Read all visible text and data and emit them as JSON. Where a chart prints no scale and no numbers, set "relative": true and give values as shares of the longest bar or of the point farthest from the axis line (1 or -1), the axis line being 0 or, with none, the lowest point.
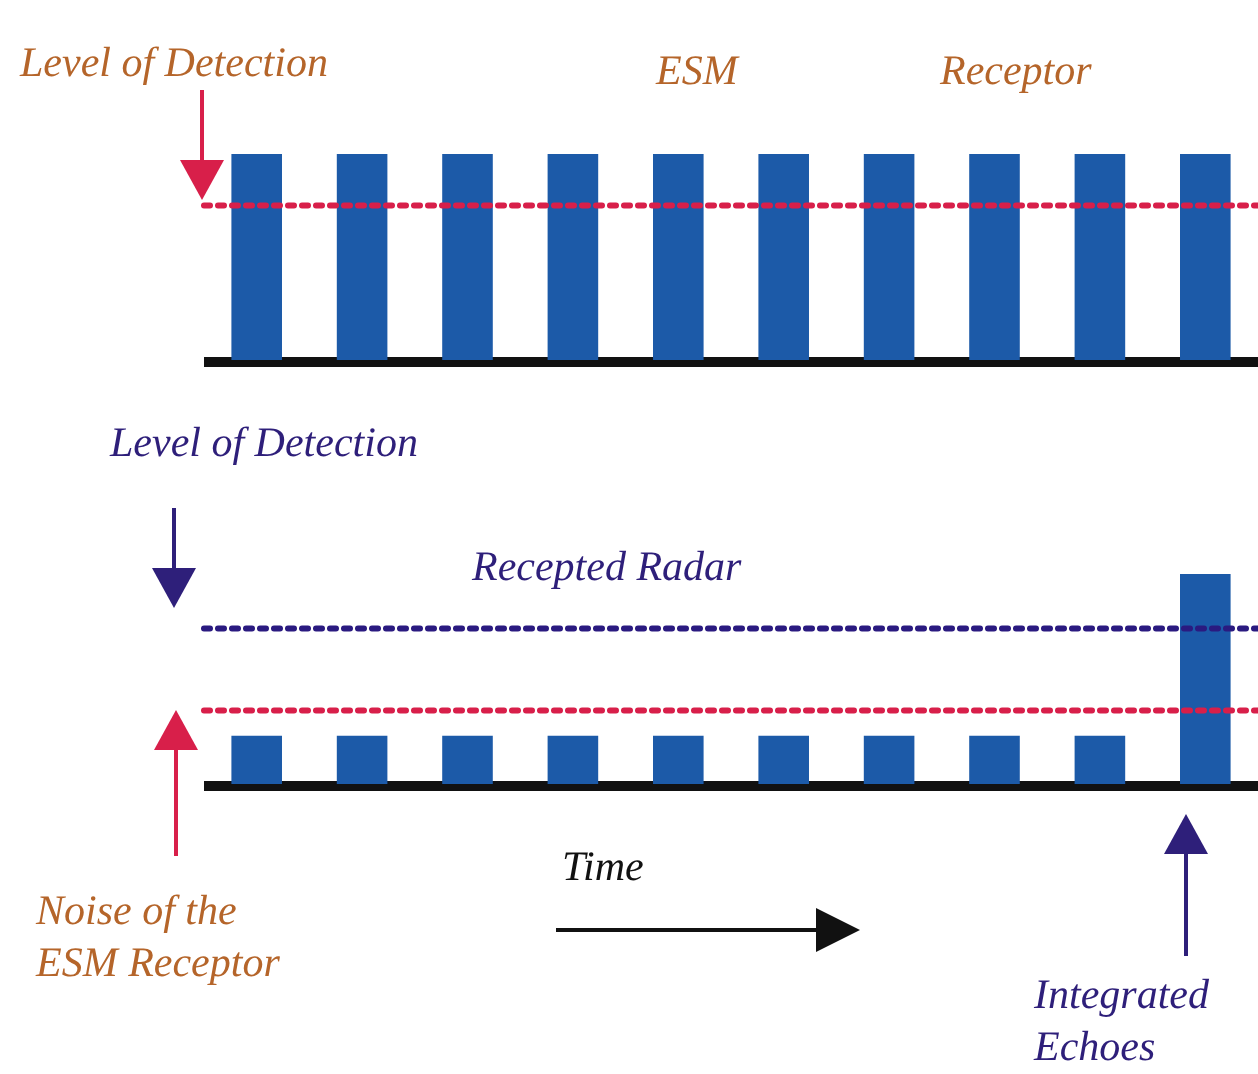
{
  "chart_data": [
    {
      "type": "bar",
      "relative": true,
      "categories": [
        null,
        null,
        null,
        null,
        null,
        null,
        null,
        null,
        null,
        null
      ],
      "values": [
        1,
        1,
        1,
        1,
        1,
        1,
        1,
        1,
        1,
        1
      ],
      "color": "#1c5aa8",
      "ref_lines": [
        {
          "axis": "y",
          "value": 0.75,
          "label": "Level of Detection",
          "color": "#d81f4a",
          "line_style": "dotted"
        }
      ],
      "annotations": [
        "ESM",
        "Receptor"
      ],
      "tick_labels": false
    },
    {
      "type": "bar",
      "relative": true,
      "categories": [
        null,
        null,
        null,
        null,
        null,
        null,
        null,
        null,
        null,
        null
      ],
      "values": [
        0.23,
        0.23,
        0.23,
        0.23,
        0.23,
        0.23,
        0.23,
        0.23,
        0.23,
        1
      ],
      "color": "#1c5aa8",
      "xlabel": "Time",
      "ref_lines": [
        {
          "axis": "y",
          "value": 0.74,
          "label": "Level of Detection",
          "color": "#2a1a80",
          "line_style": "dotted"
        },
        {
          "axis": "y",
          "value": 0.35,
          "color": "#d81f4a",
          "line_style": "dotted"
        }
      ],
      "annotations": [
        "Recepted Radar",
        "Integrated Echoes",
        "Noise of the ESM Receptor"
      ],
      "tick_labels": false
    }
  ]
}
